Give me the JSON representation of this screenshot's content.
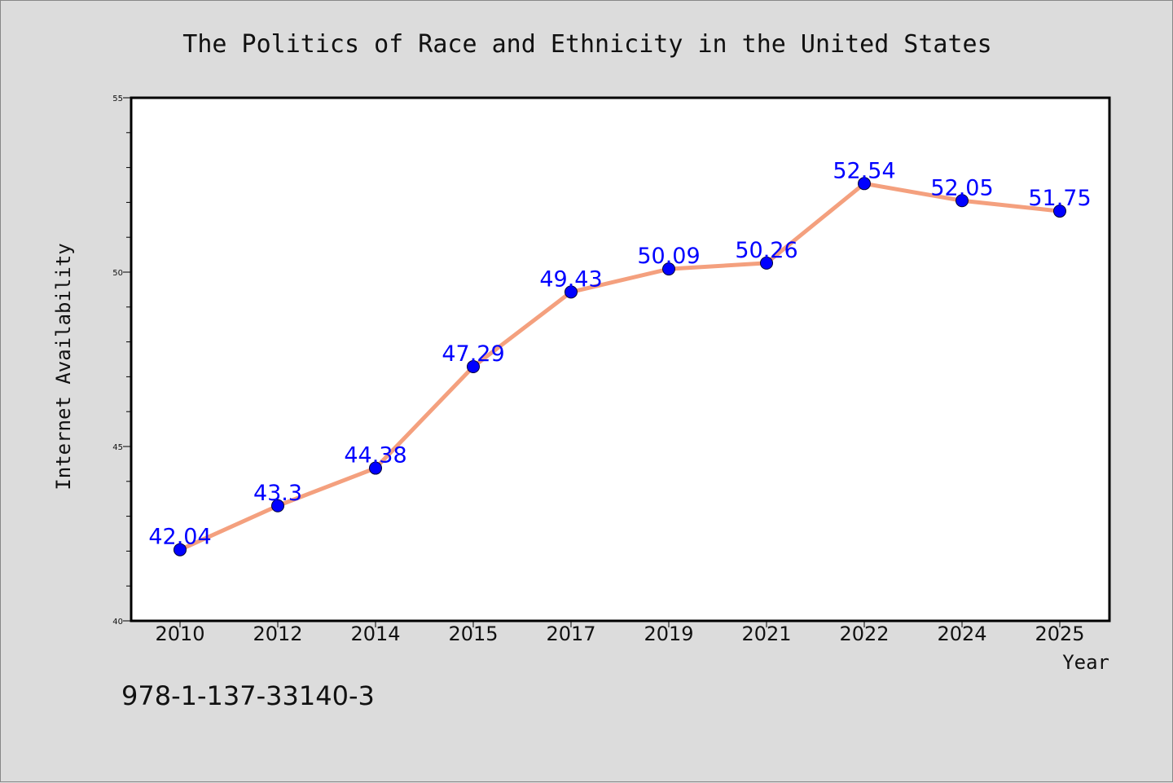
{
  "colors": {
    "background": "#dcdcdc",
    "plot_background": "#ffffff",
    "line": "#f4a07e",
    "marker": "#0000ff",
    "data_label": "#0000ff",
    "axis": "#000000"
  },
  "footer": {
    "isbn": "978-1-137-33140-3"
  },
  "chart_data": {
    "type": "line",
    "title": "The Politics of Race and Ethnicity in the United States",
    "xlabel": "Year",
    "ylabel": "Internet Availability",
    "categories": [
      "2010",
      "2012",
      "2014",
      "2015",
      "2017",
      "2019",
      "2021",
      "2022",
      "2024",
      "2025"
    ],
    "series": [
      {
        "values": [
          42.04,
          43.3,
          44.38,
          47.29,
          49.43,
          50.09,
          50.26,
          52.54,
          52.05,
          51.75
        ],
        "labels": [
          "42.04",
          "43.3",
          "44.38",
          "47.29",
          "49.43",
          "50.09",
          "50.26",
          "52.54",
          "52.05",
          "51.75"
        ]
      }
    ],
    "ylim": [
      40,
      55
    ],
    "yticks": [
      "40",
      "45",
      "50",
      "55"
    ],
    "y_minor_step": 1,
    "grid": false,
    "legend": "none"
  }
}
